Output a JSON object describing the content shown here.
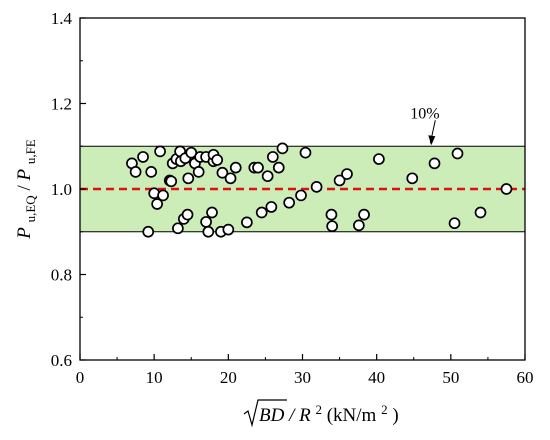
{
  "chart_data": {
    "type": "scatter",
    "xlim": [
      0,
      60
    ],
    "ylim": [
      0.6,
      1.4
    ],
    "x_ticks": [
      0,
      10,
      20,
      30,
      40,
      50,
      60
    ],
    "y_ticks": [
      0.6,
      0.8,
      1.0,
      1.2,
      1.4
    ],
    "x_tick_labels": [
      "0",
      "10",
      "20",
      "30",
      "40",
      "50",
      "60"
    ],
    "y_tick_labels": [
      "0.6",
      "0.8",
      "1.0",
      "1.2",
      "1.4"
    ],
    "xlabel": {
      "sqrt": "BD",
      "rest": " / R",
      "rest_sup": "2",
      "unit_open": "(kN/m",
      "unit_sup": "2",
      "unit_close": ")"
    },
    "ylabel": {
      "num_main": "P",
      "num_sub": "u,EQ",
      "slash": " / ",
      "den_main": "P",
      "den_sub": "u,FE"
    },
    "band": {
      "lower": 0.9,
      "upper": 1.1,
      "fill": "#cdedb8"
    },
    "reference_line": {
      "y": 1.0,
      "color": "#dd1111"
    },
    "annotation": {
      "text": "10%",
      "arrow_to": [
        47.5,
        1.1
      ]
    },
    "points": [
      [
        7.0,
        1.06
      ],
      [
        7.5,
        1.04
      ],
      [
        8.5,
        1.075
      ],
      [
        9.2,
        0.9
      ],
      [
        9.6,
        1.04
      ],
      [
        10.0,
        0.99
      ],
      [
        10.4,
        0.965
      ],
      [
        10.8,
        1.088
      ],
      [
        11.2,
        0.985
      ],
      [
        12.1,
        1.02
      ],
      [
        12.3,
        1.018
      ],
      [
        12.5,
        1.06
      ],
      [
        13.0,
        1.07
      ],
      [
        13.2,
        0.908
      ],
      [
        13.5,
        1.088
      ],
      [
        13.6,
        1.065
      ],
      [
        14.0,
        0.93
      ],
      [
        14.2,
        1.072
      ],
      [
        14.5,
        0.94
      ],
      [
        14.6,
        1.025
      ],
      [
        15.0,
        1.085
      ],
      [
        15.5,
        1.06
      ],
      [
        16.0,
        1.04
      ],
      [
        16.2,
        1.075
      ],
      [
        17.0,
        1.075
      ],
      [
        17.0,
        0.923
      ],
      [
        17.3,
        0.9
      ],
      [
        17.8,
        0.945
      ],
      [
        18.0,
        1.065
      ],
      [
        18.0,
        1.08
      ],
      [
        18.5,
        1.068
      ],
      [
        19.0,
        0.9
      ],
      [
        19.2,
        1.038
      ],
      [
        20.0,
        0.905
      ],
      [
        20.3,
        1.025
      ],
      [
        21.0,
        1.05
      ],
      [
        22.5,
        0.922
      ],
      [
        23.5,
        1.05
      ],
      [
        24.0,
        1.05
      ],
      [
        24.5,
        0.945
      ],
      [
        25.3,
        1.03
      ],
      [
        25.8,
        0.958
      ],
      [
        26.0,
        1.075
      ],
      [
        26.8,
        1.05
      ],
      [
        27.3,
        1.095
      ],
      [
        28.2,
        0.968
      ],
      [
        29.8,
        0.985
      ],
      [
        30.4,
        1.085
      ],
      [
        31.9,
        1.005
      ],
      [
        33.9,
        0.94
      ],
      [
        34.0,
        0.913
      ],
      [
        35.0,
        1.02
      ],
      [
        36.0,
        1.035
      ],
      [
        37.6,
        0.915
      ],
      [
        38.3,
        0.94
      ],
      [
        40.3,
        1.07
      ],
      [
        44.8,
        1.025
      ],
      [
        47.8,
        1.06
      ],
      [
        50.5,
        0.92
      ],
      [
        50.9,
        1.083
      ],
      [
        54.0,
        0.945
      ],
      [
        57.5,
        1.0
      ]
    ]
  }
}
